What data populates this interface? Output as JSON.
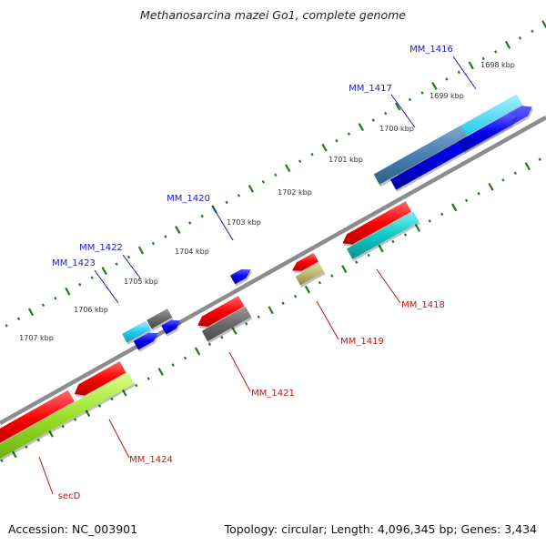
{
  "title": "Methanosarcina mazei Go1, complete genome",
  "footer": {
    "accession": "Accession: NC_003901",
    "summary": "Topology: circular; Length: 4,096,345 bp; Genes: 3,434"
  },
  "colors": {
    "backbone": "#8c8c8c",
    "tick": "#1f7a1f",
    "forward_label": "#1a1acc",
    "reverse_label": "#cc1111"
  },
  "scale_labels": [
    "1698 kbp",
    "1699 kbp",
    "1700 kbp",
    "1701 kbp",
    "1702 kbp",
    "1703 kbp",
    "1704 kbp",
    "1705 kbp",
    "1706 kbp",
    "1707 kbp"
  ],
  "gene_labels": {
    "forward": [
      "MM_1416",
      "MM_1417",
      "MM_1420",
      "MM_1422",
      "MM_1423"
    ],
    "reverse": [
      "MM_1418",
      "MM_1419",
      "MM_1421",
      "MM_1424",
      "secD"
    ]
  }
}
